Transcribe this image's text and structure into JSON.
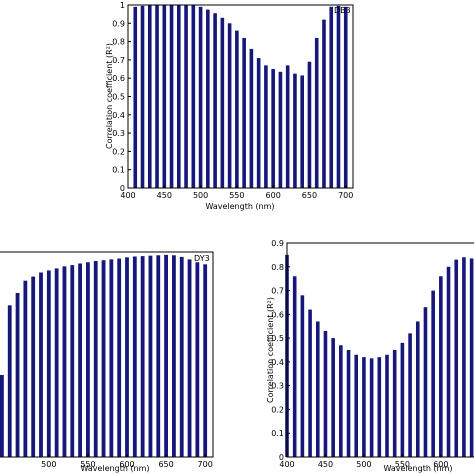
{
  "chart_data": [
    {
      "type": "bar",
      "panel_label": "DB3",
      "xlabel": "Wavelength (nm)",
      "ylabel": "Correlation coefficient (R²)",
      "xlim": [
        400,
        710
      ],
      "ylim": [
        0,
        1
      ],
      "xticks": [
        "400",
        "450",
        "500",
        "550",
        "600",
        "650",
        "700"
      ],
      "yticks": [
        "0",
        "0.1",
        "0.2",
        "0.3",
        "0.4",
        "0.5",
        "0.6",
        "0.7",
        "0.8",
        "0.9",
        "1"
      ],
      "color": "#15177a",
      "x": [
        410,
        420,
        430,
        440,
        450,
        460,
        470,
        480,
        490,
        500,
        510,
        520,
        530,
        540,
        550,
        560,
        570,
        580,
        590,
        600,
        610,
        620,
        630,
        640,
        650,
        660,
        670,
        680,
        690,
        700
      ],
      "values": [
        0.99,
        0.995,
        0.998,
        0.999,
        1.0,
        1.0,
        1.0,
        1.0,
        0.998,
        0.99,
        0.975,
        0.955,
        0.93,
        0.9,
        0.86,
        0.82,
        0.76,
        0.71,
        0.67,
        0.65,
        0.635,
        0.67,
        0.625,
        0.615,
        0.69,
        0.82,
        0.92,
        0.99,
        0.995,
        0.99
      ]
    },
    {
      "type": "bar",
      "panel_label": "DY3",
      "xlabel": "Wavelength (nm)",
      "ylabel": "",
      "xlim": [
        435,
        710
      ],
      "ylim": [
        0.4,
        0.9
      ],
      "xticks": [
        "500",
        "550",
        "600",
        "650",
        "700"
      ],
      "yticks": [],
      "color": "#15177a",
      "x": [
        440,
        450,
        460,
        470,
        480,
        490,
        500,
        510,
        520,
        530,
        540,
        550,
        560,
        570,
        580,
        590,
        600,
        610,
        620,
        630,
        640,
        650,
        660,
        670,
        680,
        690,
        700
      ],
      "values": [
        0.6,
        0.77,
        0.8,
        0.83,
        0.84,
        0.85,
        0.855,
        0.86,
        0.865,
        0.868,
        0.872,
        0.875,
        0.878,
        0.88,
        0.882,
        0.884,
        0.887,
        0.889,
        0.89,
        0.891,
        0.892,
        0.893,
        0.892,
        0.888,
        0.882,
        0.875,
        0.87
      ]
    },
    {
      "type": "bar",
      "panel_label": "",
      "xlabel": "Wavelength (nm)",
      "ylabel": "Correlation coefficient (R²)",
      "xlim": [
        400,
        660
      ],
      "ylim": [
        0,
        0.9
      ],
      "xticks": [
        "400",
        "450",
        "500",
        "550",
        "600"
      ],
      "yticks": [
        "0",
        "0.1",
        "0.2",
        "0.3",
        "0.4",
        "0.5",
        "0.6",
        "0.7",
        "0.8",
        "0.9"
      ],
      "color": "#15177a",
      "x": [
        400,
        410,
        420,
        430,
        440,
        450,
        460,
        470,
        480,
        490,
        500,
        510,
        520,
        530,
        540,
        550,
        560,
        570,
        580,
        590,
        600,
        610,
        620,
        630,
        640,
        650
      ],
      "values": [
        0.85,
        0.76,
        0.68,
        0.62,
        0.57,
        0.53,
        0.5,
        0.47,
        0.45,
        0.43,
        0.42,
        0.415,
        0.42,
        0.43,
        0.45,
        0.48,
        0.52,
        0.57,
        0.63,
        0.7,
        0.76,
        0.8,
        0.83,
        0.84,
        0.835,
        0.82
      ]
    }
  ]
}
